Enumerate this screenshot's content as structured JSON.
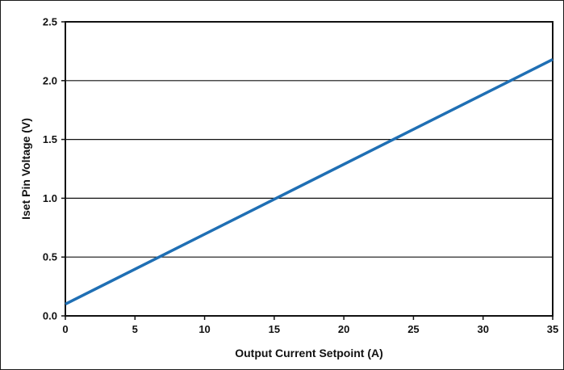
{
  "chart_data": {
    "type": "line",
    "title": "",
    "xlabel": "Output Current Setpoint (A)",
    "ylabel": "Iset Pin Voltage (V)",
    "xlim": [
      0,
      35
    ],
    "ylim": [
      0,
      2.5
    ],
    "xticks": [
      0,
      5,
      10,
      15,
      20,
      25,
      30,
      35
    ],
    "xtick_labels": [
      "0",
      "5",
      "10",
      "15",
      "20",
      "25",
      "30",
      "35"
    ],
    "yticks": [
      0,
      0.5,
      1.0,
      1.5,
      2.0,
      2.5
    ],
    "ytick_labels": [
      "0.0",
      "0.5",
      "1.0",
      "1.5",
      "2.0",
      "2.5"
    ],
    "grid": "horizontal",
    "legend": "none",
    "series": [
      {
        "color": "#1f6fb4",
        "x": [
          0,
          35
        ],
        "y": [
          0.1,
          2.18
        ]
      }
    ]
  }
}
